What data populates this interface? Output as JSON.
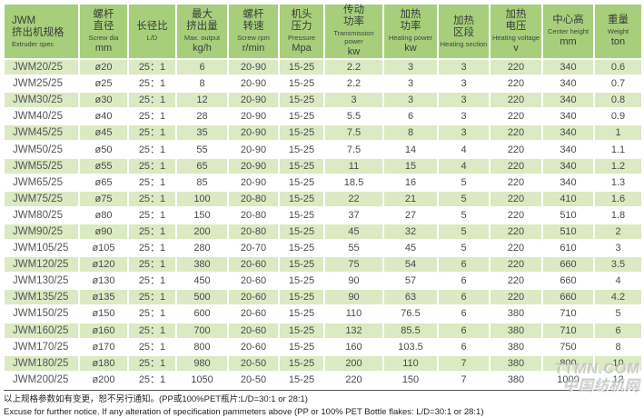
{
  "table": {
    "columns": [
      {
        "cn": "JWM\n挤出机规格",
        "en": "Extruder spec",
        "unit": ""
      },
      {
        "cn": "螺杆\n直径",
        "en": "Screw dia",
        "unit": "mm"
      },
      {
        "cn": "长径比",
        "en": "L/D",
        "unit": ""
      },
      {
        "cn": "最大\n挤出量",
        "en": "Max. output",
        "unit": "kg/h"
      },
      {
        "cn": "螺杆\n转速",
        "en": "Screw rpm",
        "unit": "r/min"
      },
      {
        "cn": "机头\n压力",
        "en": "Pressure",
        "unit": "Mpa"
      },
      {
        "cn": "传动\n功率",
        "en": "Transmission power",
        "unit": "kw"
      },
      {
        "cn": "加热\n功率",
        "en": "Heating power",
        "unit": "kw"
      },
      {
        "cn": "加热\n区段",
        "en": "Heating section",
        "unit": ""
      },
      {
        "cn": "加热\n电压",
        "en": "Heating voltage",
        "unit": "v"
      },
      {
        "cn": "中心高",
        "en": "Center height",
        "unit": "mm"
      },
      {
        "cn": "重量",
        "en": "Weight",
        "unit": "ton"
      }
    ],
    "rows": [
      [
        "JWM20/25",
        "ø20",
        "25：1",
        "6",
        "20-90",
        "15-25",
        "2.2",
        "3",
        "3",
        "220",
        "340",
        "0.6"
      ],
      [
        "JWM25/25",
        "ø25",
        "25：1",
        "8",
        "20-90",
        "15-25",
        "2.2",
        "3",
        "3",
        "220",
        "340",
        "0.7"
      ],
      [
        "JWM30/25",
        "ø30",
        "25：1",
        "12",
        "20-90",
        "15-25",
        "3",
        "3",
        "3",
        "220",
        "340",
        "0.8"
      ],
      [
        "JWM40/25",
        "ø40",
        "25：1",
        "28",
        "20-90",
        "15-25",
        "5.5",
        "6",
        "3",
        "220",
        "340",
        "0.9"
      ],
      [
        "JWM45/25",
        "ø45",
        "25：1",
        "35",
        "20-90",
        "15-25",
        "7.5",
        "8",
        "3",
        "220",
        "340",
        "1"
      ],
      [
        "JWM50/25",
        "ø50",
        "25：1",
        "55",
        "20-90",
        "15-25",
        "7.5",
        "14",
        "4",
        "220",
        "340",
        "1.1"
      ],
      [
        "JWM55/25",
        "ø55",
        "25：1",
        "65",
        "20-90",
        "15-25",
        "11",
        "15",
        "4",
        "220",
        "340",
        "1.2"
      ],
      [
        "JWM65/25",
        "ø65",
        "25：1",
        "85",
        "20-90",
        "15-25",
        "18.5",
        "16",
        "5",
        "220",
        "340",
        "1.3"
      ],
      [
        "JWM75/25",
        "ø75",
        "25：1",
        "100",
        "20-80",
        "15-25",
        "22",
        "21",
        "5",
        "220",
        "410",
        "1.6"
      ],
      [
        "JWM80/25",
        "ø80",
        "25：1",
        "150",
        "20-80",
        "15-25",
        "37",
        "27",
        "5",
        "220",
        "510",
        "1.8"
      ],
      [
        "JWM90/25",
        "ø90",
        "25：1",
        "200",
        "20-80",
        "15-25",
        "45",
        "32",
        "5",
        "220",
        "510",
        "2"
      ],
      [
        "JWM105/25",
        "ø105",
        "25：1",
        "280",
        "20-70",
        "15-25",
        "55",
        "45",
        "5",
        "220",
        "610",
        "3"
      ],
      [
        "JWM120/25",
        "ø120",
        "25：1",
        "380",
        "20-60",
        "15-25",
        "75",
        "54",
        "6",
        "220",
        "660",
        "3.5"
      ],
      [
        "JWM130/25",
        "ø130",
        "25：1",
        "450",
        "20-60",
        "15-25",
        "90",
        "57",
        "6",
        "220",
        "660",
        "4"
      ],
      [
        "JWM135/25",
        "ø135",
        "25：1",
        "500",
        "20-60",
        "15-25",
        "90",
        "63",
        "6",
        "220",
        "660",
        "4.2"
      ],
      [
        "JWM150/25",
        "ø150",
        "25：1",
        "600",
        "20-60",
        "15-25",
        "110",
        "76.5",
        "6",
        "380",
        "710",
        "5"
      ],
      [
        "JWM160/25",
        "ø160",
        "25：1",
        "700",
        "20-60",
        "15-25",
        "132",
        "85.5",
        "6",
        "380",
        "710",
        "6"
      ],
      [
        "JWM170/25",
        "ø170",
        "25：1",
        "800",
        "20-60",
        "15-25",
        "160",
        "103.5",
        "6",
        "380",
        "750",
        "8"
      ],
      [
        "JWM180/25",
        "ø180",
        "25：1",
        "980",
        "20-50",
        "15-25",
        "200",
        "110",
        "7",
        "380",
        "800",
        "10"
      ],
      [
        "JWM200/25",
        "ø200",
        "25：1",
        "1050",
        "20-50",
        "15-25",
        "220",
        "150",
        "7",
        "380",
        "1000",
        "12"
      ]
    ]
  },
  "footer": {
    "cn": "以上规格参数如有变更，恕不另行通知。(PP或100%PET瓶片:L/D=30:1 or 28:1)",
    "en": "Excuse for further notice. If any alteration of specification pammeters above (PP or 100% PET Bottle flakes: L/D=30:1 or 28:1)"
  },
  "watermark": {
    "line1": "TTMN.COM",
    "line2": "中国纺机网"
  },
  "colors": {
    "header_bg": "#a7cf7b",
    "row_alt_bg": "#dbeac2",
    "row_bg": "#ffffff",
    "grid": "#ffffff",
    "text": "#4a4a4a"
  }
}
